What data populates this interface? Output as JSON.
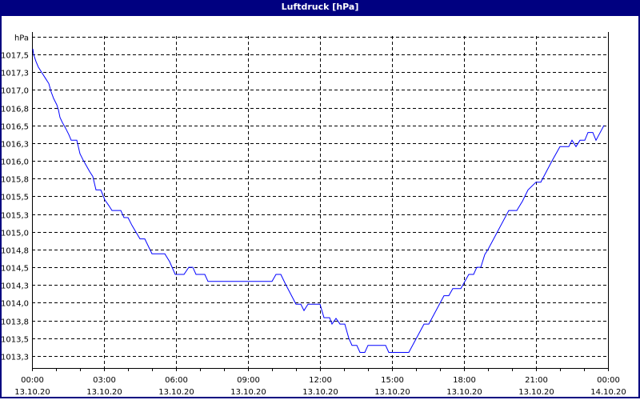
{
  "window": {
    "title": "Luftdruck [hPa]"
  },
  "chart_data": {
    "type": "line",
    "title": "Luftdruck [hPa]",
    "ylabel": "hPa",
    "ylim": [
      1013.07,
      1017.75
    ],
    "grid": true,
    "line_color": "#0000ff",
    "y_ticks": [
      {
        "value": 1017.75,
        "label": "hPa"
      },
      {
        "value": 1017.5,
        "label": "1017,5"
      },
      {
        "value": 1017.25,
        "label": "1017,3"
      },
      {
        "value": 1017.0,
        "label": "1017,0"
      },
      {
        "value": 1016.75,
        "label": "1016,8"
      },
      {
        "value": 1016.5,
        "label": "1016,5"
      },
      {
        "value": 1016.25,
        "label": "1016,3"
      },
      {
        "value": 1016.0,
        "label": "1016,0"
      },
      {
        "value": 1015.75,
        "label": "1015,8"
      },
      {
        "value": 1015.5,
        "label": "1015,5"
      },
      {
        "value": 1015.25,
        "label": "1015,3"
      },
      {
        "value": 1015.0,
        "label": "1015,0"
      },
      {
        "value": 1014.75,
        "label": "1014,8"
      },
      {
        "value": 1014.5,
        "label": "1014,5"
      },
      {
        "value": 1014.25,
        "label": "1014,3"
      },
      {
        "value": 1014.0,
        "label": "1014,0"
      },
      {
        "value": 1013.75,
        "label": "1013,8"
      },
      {
        "value": 1013.5,
        "label": "1013,5"
      },
      {
        "value": 1013.25,
        "label": "1013,3"
      }
    ],
    "x_ticks": [
      {
        "time": "00:00",
        "date": "13.10.20"
      },
      {
        "time": "03:00",
        "date": "13.10.20"
      },
      {
        "time": "06:00",
        "date": "13.10.20"
      },
      {
        "time": "09:00",
        "date": "13.10.20"
      },
      {
        "time": "12:00",
        "date": "13.10.20"
      },
      {
        "time": "15:00",
        "date": "13.10.20"
      },
      {
        "time": "18:00",
        "date": "13.10.20"
      },
      {
        "time": "21:00",
        "date": "13.10.20"
      },
      {
        "time": "00:00",
        "date": "14.10.20"
      }
    ],
    "xlim": [
      "13.10.20 00:00",
      "14.10.20 00:00"
    ],
    "series": [
      {
        "points": [
          [
            "00:02",
            1017.58
          ],
          [
            "00:04",
            1017.5
          ],
          [
            "00:10",
            1017.4
          ],
          [
            "00:16",
            1017.32
          ],
          [
            "00:26",
            1017.23
          ],
          [
            "00:34",
            1017.16
          ],
          [
            "00:42",
            1017.09
          ],
          [
            "00:48",
            1016.97
          ],
          [
            "00:54",
            1016.88
          ],
          [
            "01:02",
            1016.79
          ],
          [
            "01:06",
            1016.72
          ],
          [
            "01:10",
            1016.61
          ],
          [
            "01:16",
            1016.54
          ],
          [
            "01:24",
            1016.46
          ],
          [
            "01:32",
            1016.37
          ],
          [
            "01:38",
            1016.29
          ],
          [
            "01:52",
            1016.29
          ],
          [
            "02:00",
            1016.1
          ],
          [
            "02:08",
            1016.01
          ],
          [
            "02:16",
            1015.93
          ],
          [
            "02:24",
            1015.85
          ],
          [
            "02:32",
            1015.78
          ],
          [
            "02:40",
            1015.59
          ],
          [
            "02:52",
            1015.59
          ],
          [
            "03:02",
            1015.45
          ],
          [
            "03:12",
            1015.37
          ],
          [
            "03:20",
            1015.3
          ],
          [
            "03:42",
            1015.3
          ],
          [
            "03:50",
            1015.2
          ],
          [
            "04:00",
            1015.2
          ],
          [
            "04:10",
            1015.09
          ],
          [
            "04:30",
            1014.9
          ],
          [
            "04:42",
            1014.9
          ],
          [
            "05:00",
            1014.69
          ],
          [
            "05:32",
            1014.69
          ],
          [
            "05:44",
            1014.58
          ],
          [
            "05:58",
            1014.4
          ],
          [
            "06:20",
            1014.4
          ],
          [
            "06:32",
            1014.5
          ],
          [
            "06:42",
            1014.5
          ],
          [
            "06:50",
            1014.4
          ],
          [
            "07:12",
            1014.4
          ],
          [
            "07:20",
            1014.3
          ],
          [
            "10:00",
            1014.3
          ],
          [
            "10:10",
            1014.4
          ],
          [
            "10:22",
            1014.4
          ],
          [
            "10:34",
            1014.26
          ],
          [
            "11:00",
            1013.98
          ],
          [
            "11:12",
            1013.98
          ],
          [
            "11:20",
            1013.89
          ],
          [
            "11:30",
            1013.98
          ],
          [
            "12:00",
            1013.98
          ],
          [
            "12:10",
            1013.79
          ],
          [
            "12:24",
            1013.79
          ],
          [
            "12:30",
            1013.7
          ],
          [
            "12:40",
            1013.78
          ],
          [
            "12:50",
            1013.7
          ],
          [
            "13:02",
            1013.7
          ],
          [
            "13:12",
            1013.5
          ],
          [
            "13:20",
            1013.4
          ],
          [
            "13:32",
            1013.4
          ],
          [
            "13:40",
            1013.3
          ],
          [
            "13:52",
            1013.3
          ],
          [
            "14:00",
            1013.4
          ],
          [
            "14:44",
            1013.4
          ],
          [
            "14:52",
            1013.3
          ],
          [
            "15:42",
            1013.3
          ],
          [
            "16:20",
            1013.7
          ],
          [
            "16:32",
            1013.7
          ],
          [
            "17:10",
            1014.1
          ],
          [
            "17:22",
            1014.1
          ],
          [
            "17:32",
            1014.2
          ],
          [
            "17:52",
            1014.2
          ],
          [
            "18:12",
            1014.4
          ],
          [
            "18:24",
            1014.4
          ],
          [
            "18:32",
            1014.5
          ],
          [
            "18:42",
            1014.5
          ],
          [
            "18:52",
            1014.68
          ],
          [
            "19:00",
            1014.75
          ],
          [
            "19:52",
            1015.3
          ],
          [
            "20:12",
            1015.3
          ],
          [
            "20:26",
            1015.43
          ],
          [
            "20:40",
            1015.59
          ],
          [
            "21:00",
            1015.7
          ],
          [
            "21:12",
            1015.7
          ],
          [
            "21:40",
            1016.0
          ],
          [
            "22:00",
            1016.2
          ],
          [
            "22:22",
            1016.2
          ],
          [
            "22:30",
            1016.29
          ],
          [
            "22:40",
            1016.2
          ],
          [
            "22:50",
            1016.29
          ],
          [
            "23:02",
            1016.29
          ],
          [
            "23:10",
            1016.4
          ],
          [
            "23:22",
            1016.4
          ],
          [
            "23:30",
            1016.29
          ],
          [
            "23:50",
            1016.5
          ]
        ]
      }
    ]
  }
}
